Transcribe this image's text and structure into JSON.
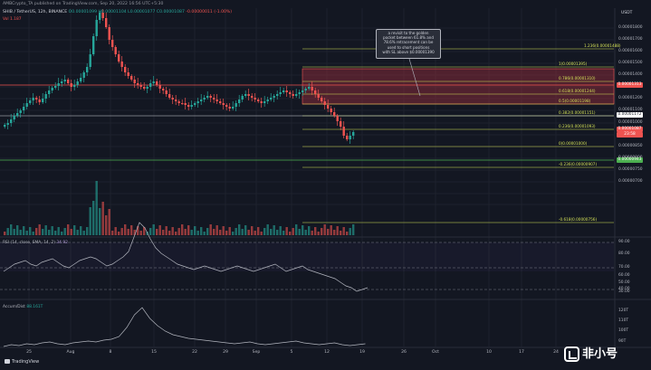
{
  "header": {
    "publisher_line": "AMBCrypto_TA published on TradingView.com, Sep 20, 2022 16:56 UTC+5:30",
    "symbol": "SHIB / TetherUS, 12h, BINANCE",
    "ohlc": "O0.00001099 H0.00001104 L0.00001077 C0.00001087",
    "change": "-0.00000011 (-1.00%)",
    "volume": "Vol  1.187"
  },
  "price_axis": {
    "currency": "USDT",
    "ticks": [
      "0.00001800",
      "0.00001700",
      "0.00001600",
      "0.00001500",
      "0.00001400",
      "0.00001300",
      "0.00001200",
      "0.00001100",
      "0.00001000",
      "0.00000900",
      "0.00000850",
      "0.00000800",
      "0.00000750",
      "0.00000700"
    ],
    "tags": [
      {
        "text": "0.00001313",
        "bg": "#ef5350",
        "fg": "#ffffff"
      },
      {
        "text": "0.00001172",
        "bg": "#ffffff",
        "fg": "#131722"
      },
      {
        "text": "0.00001087",
        "bg": "#ef5350",
        "fg": "#ffffff"
      },
      {
        "text": "23:58",
        "bg": "#ef5350",
        "fg": "#ffffff"
      },
      {
        "text": "0.00000943",
        "bg": "#4caf50",
        "fg": "#ffffff"
      }
    ]
  },
  "fib_levels": [
    {
      "label": "1.236(0.00001488)"
    },
    {
      "label": "1(0.00001395)"
    },
    {
      "label": "0.786(0.00001310)"
    },
    {
      "label": "0.618(0.00001244)"
    },
    {
      "label": "0.5(0.00001198)"
    },
    {
      "label": "0.382(0.00001151)"
    },
    {
      "label": "0.236(0.00001093)"
    },
    {
      "label": "0(0.00001000)"
    },
    {
      "label": "-0.236(0.00000907)"
    },
    {
      "label": "-0.618(0.00000756)"
    }
  ],
  "annotation": {
    "lines": [
      "a revisit to the golden",
      "pocket between 61.8% and",
      "78.6% retracement can be",
      "used to short positions",
      "with SL above $0.00001390"
    ]
  },
  "rsi": {
    "legend": "RSI (14, close, SMA, 14, 2)",
    "value": "34.92",
    "ticks": [
      "90.00",
      "80.00",
      "70.00",
      "60.00",
      "50.00",
      "40.00",
      "30.00"
    ]
  },
  "accdist": {
    "legend": "Accum/Dist",
    "value": "88.161T",
    "ticks": [
      "120T",
      "110T",
      "100T",
      "90T"
    ]
  },
  "time_axis": [
    "25",
    "Aug",
    "8",
    "15",
    "22",
    "29",
    "Sep",
    "5",
    "12",
    "19",
    "26",
    "Oct",
    "10",
    "17",
    "24"
  ],
  "logo": {
    "tradingview": "TradingView",
    "watermark": "非小号"
  },
  "colors": {
    "up": "#26a69a",
    "down": "#ef5350",
    "fib": "#d4e157",
    "zone": "#9c2f3d"
  }
}
